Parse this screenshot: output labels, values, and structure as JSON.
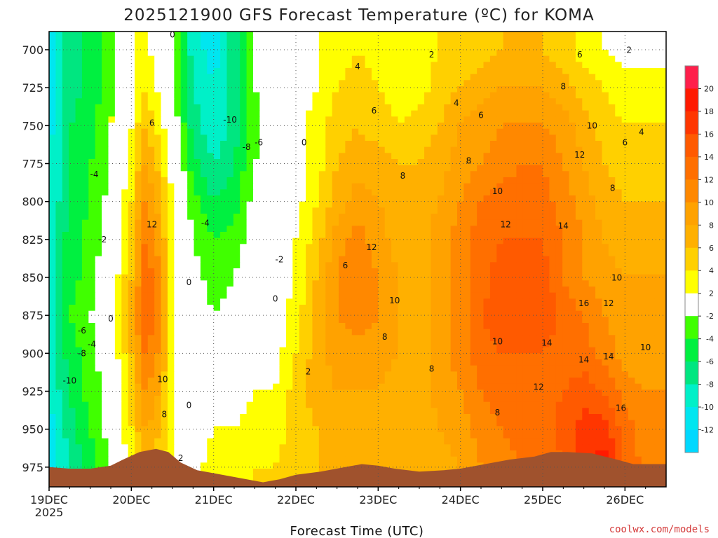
{
  "title": "2025121900 GFS Forecast Temperature (ºC) for KOMA",
  "credit": "coolwx.com/models",
  "chart_data": {
    "type": "heatmap",
    "title": "2025121900 GFS Forecast Temperature (ºC) for KOMA",
    "xlabel": "Forecast Time (UTC)",
    "ylabel": "",
    "x_ticks": [
      "19DEC",
      "20DEC",
      "21DEC",
      "22DEC",
      "23DEC",
      "24DEC",
      "25DEC",
      "26DEC"
    ],
    "x_year": "2025",
    "x_range_days": [
      0,
      7.5
    ],
    "y_ticks": [
      700,
      725,
      750,
      775,
      800,
      825,
      850,
      875,
      900,
      925,
      950,
      975
    ],
    "y_range": [
      988,
      688
    ],
    "grid": true,
    "legend": "right",
    "colorbar": {
      "labels": [
        "20",
        "18",
        "16",
        "14",
        "12",
        "10",
        "8",
        "6",
        "4",
        "2",
        "-2",
        "-4",
        "-6",
        "-8",
        "-10",
        "-12"
      ],
      "colors": [
        "#ff1f4b",
        "#ff1a00",
        "#ff3600",
        "#ff5a00",
        "#ff6f00",
        "#ff8800",
        "#ffa200",
        "#ffb000",
        "#ffd000",
        "#ffff00",
        "#ffffff",
        "#40ff00",
        "#00f040",
        "#00e680",
        "#00f0c8",
        "#00e6f0",
        "#00d8ff"
      ]
    },
    "temperature_grid": {
      "x_days": [
        0,
        0.25,
        0.5,
        0.75,
        1.0,
        1.15,
        1.3,
        1.5,
        1.75,
        2.0,
        2.25,
        2.5,
        2.75,
        3.0,
        3.25,
        3.5,
        3.75,
        4.0,
        4.25,
        4.5,
        4.75,
        5.0,
        5.25,
        5.5,
        5.75,
        6.0,
        6.25,
        6.5,
        6.75,
        7.0,
        7.25,
        7.5
      ],
      "levels_hpa": [
        700,
        725,
        750,
        775,
        800,
        825,
        850,
        875,
        900,
        925,
        950,
        975
      ],
      "rows": [
        [
          -12,
          -7,
          -5,
          -3,
          1,
          3,
          1,
          -2,
          -9,
          -11,
          -7,
          -2,
          0,
          0,
          2,
          3,
          4,
          3,
          2,
          3,
          4,
          4,
          5,
          6,
          6,
          6,
          5,
          3,
          2,
          1,
          1,
          1
        ],
        [
          -12,
          -7,
          -5,
          -3,
          1,
          4,
          2,
          -1,
          -8,
          -10,
          -7,
          -2,
          0,
          1,
          2,
          4,
          5,
          4,
          3,
          3,
          5,
          6,
          7,
          8,
          8,
          8,
          7,
          5,
          4,
          3,
          3,
          3
        ],
        [
          -11,
          -6,
          -5,
          -2,
          2,
          6,
          4,
          0,
          -7,
          -10,
          -7,
          -3,
          0,
          1,
          3,
          5,
          6,
          5,
          4,
          5,
          6,
          8,
          9,
          10,
          10,
          10,
          9,
          7,
          5,
          4,
          4,
          4
        ],
        [
          -10,
          -6,
          -4,
          -2,
          3,
          8,
          6,
          1,
          -5,
          -8,
          -6,
          -2,
          0,
          1,
          3,
          6,
          7,
          7,
          6,
          6,
          7,
          9,
          10,
          11,
          12,
          12,
          10,
          8,
          6,
          5,
          5,
          5
        ],
        [
          -10,
          -6,
          -4,
          -1,
          4,
          10,
          8,
          2,
          -3,
          -6,
          -5,
          -1,
          0,
          1,
          4,
          7,
          9,
          8,
          7,
          7,
          8,
          10,
          12,
          13,
          13,
          13,
          11,
          9,
          7,
          6,
          6,
          6
        ],
        [
          -9,
          -5,
          -3,
          -1,
          5,
          12,
          10,
          2,
          -2,
          -4,
          -3,
          -1,
          0,
          2,
          5,
          9,
          11,
          9,
          7,
          7,
          9,
          11,
          13,
          14,
          14,
          14,
          12,
          10,
          8,
          7,
          7,
          7
        ],
        [
          -9,
          -5,
          -3,
          0,
          6,
          13,
          12,
          2,
          -1,
          -3,
          -2,
          0,
          0,
          2,
          6,
          10,
          12,
          10,
          8,
          7,
          9,
          11,
          13,
          15,
          15,
          15,
          12,
          10,
          9,
          8,
          8,
          8
        ],
        [
          -9,
          -4,
          -2,
          0,
          7,
          14,
          12,
          2,
          0,
          -2,
          -1,
          0,
          1,
          3,
          7,
          10,
          11,
          10,
          8,
          7,
          9,
          11,
          14,
          15,
          16,
          16,
          13,
          12,
          10,
          9,
          9,
          9
        ],
        [
          -9,
          -5,
          -3,
          0,
          6,
          12,
          11,
          2,
          0,
          0,
          0,
          1,
          1,
          4,
          7,
          9,
          9,
          9,
          8,
          7,
          9,
          11,
          13,
          14,
          14,
          14,
          13,
          13,
          11,
          9,
          9,
          9
        ],
        [
          -10,
          -6,
          -3,
          -1,
          5,
          10,
          9,
          2,
          0,
          1,
          1,
          2,
          2,
          5,
          7,
          8,
          8,
          8,
          7,
          7,
          9,
          10,
          12,
          13,
          13,
          13,
          14,
          15,
          14,
          11,
          10,
          10
        ],
        [
          -11,
          -7,
          -4,
          -1,
          4,
          8,
          7,
          2,
          1,
          2,
          2,
          3,
          3,
          5,
          6,
          7,
          7,
          7,
          6,
          6,
          8,
          9,
          11,
          12,
          13,
          13,
          15,
          17,
          17,
          13,
          11,
          10
        ],
        [
          -11,
          -8,
          -5,
          -2,
          3,
          6,
          5,
          2,
          1,
          3,
          3,
          4,
          4,
          5,
          6,
          7,
          7,
          6,
          6,
          6,
          7,
          8,
          10,
          11,
          12,
          12,
          14,
          18,
          19,
          14,
          11,
          10
        ]
      ]
    },
    "contour_labels": [
      {
        "text": "0",
        "day": 1.5,
        "hpa": 692
      },
      {
        "text": "-10",
        "day": 2.2,
        "hpa": 748
      },
      {
        "text": "-8",
        "day": 2.4,
        "hpa": 766
      },
      {
        "text": "-6",
        "day": 2.55,
        "hpa": 763
      },
      {
        "text": "-4",
        "day": 1.9,
        "hpa": 816
      },
      {
        "text": "-2",
        "day": 2.8,
        "hpa": 840
      },
      {
        "text": "0",
        "day": 3.1,
        "hpa": 763
      },
      {
        "text": "0",
        "day": 2.75,
        "hpa": 866
      },
      {
        "text": "0",
        "day": 1.7,
        "hpa": 855
      },
      {
        "text": "0",
        "day": 0.75,
        "hpa": 879
      },
      {
        "text": "0",
        "day": 1.7,
        "hpa": 936
      },
      {
        "text": "-2",
        "day": 0.65,
        "hpa": 827
      },
      {
        "text": "-4",
        "day": 0.55,
        "hpa": 784
      },
      {
        "text": "-4",
        "day": 0.52,
        "hpa": 896
      },
      {
        "text": "-6",
        "day": 0.4,
        "hpa": 887
      },
      {
        "text": "-8",
        "day": 0.4,
        "hpa": 902
      },
      {
        "text": "-10",
        "day": 0.25,
        "hpa": 920
      },
      {
        "text": "6",
        "day": 1.25,
        "hpa": 750
      },
      {
        "text": "12",
        "day": 1.25,
        "hpa": 817
      },
      {
        "text": "10",
        "day": 1.38,
        "hpa": 919
      },
      {
        "text": "8",
        "day": 1.4,
        "hpa": 942
      },
      {
        "text": "2",
        "day": 1.6,
        "hpa": 971
      },
      {
        "text": "2",
        "day": 3.15,
        "hpa": 914
      },
      {
        "text": "2",
        "day": 4.65,
        "hpa": 705
      },
      {
        "text": "4",
        "day": 3.75,
        "hpa": 713
      },
      {
        "text": "6",
        "day": 3.95,
        "hpa": 742
      },
      {
        "text": "8",
        "day": 4.3,
        "hpa": 785
      },
      {
        "text": "12",
        "day": 3.92,
        "hpa": 832
      },
      {
        "text": "10",
        "day": 4.2,
        "hpa": 867
      },
      {
        "text": "6",
        "day": 3.6,
        "hpa": 844
      },
      {
        "text": "8",
        "day": 4.08,
        "hpa": 891
      },
      {
        "text": "8",
        "day": 4.65,
        "hpa": 912
      },
      {
        "text": "4",
        "day": 4.95,
        "hpa": 737
      },
      {
        "text": "6",
        "day": 5.25,
        "hpa": 745
      },
      {
        "text": "8",
        "day": 5.1,
        "hpa": 775
      },
      {
        "text": "10",
        "day": 5.45,
        "hpa": 795
      },
      {
        "text": "12",
        "day": 5.55,
        "hpa": 817
      },
      {
        "text": "10",
        "day": 5.45,
        "hpa": 894
      },
      {
        "text": "8",
        "day": 5.45,
        "hpa": 941
      },
      {
        "text": "6",
        "day": 6.45,
        "hpa": 705
      },
      {
        "text": "8",
        "day": 6.25,
        "hpa": 726
      },
      {
        "text": "10",
        "day": 6.6,
        "hpa": 752
      },
      {
        "text": "12",
        "day": 6.45,
        "hpa": 771
      },
      {
        "text": "14",
        "day": 6.25,
        "hpa": 818
      },
      {
        "text": "16",
        "day": 6.5,
        "hpa": 869
      },
      {
        "text": "14",
        "day": 6.05,
        "hpa": 895
      },
      {
        "text": "14",
        "day": 6.5,
        "hpa": 906
      },
      {
        "text": "12",
        "day": 5.95,
        "hpa": 924
      },
      {
        "text": "14",
        "day": 6.8,
        "hpa": 904
      },
      {
        "text": "12",
        "day": 6.8,
        "hpa": 869
      },
      {
        "text": "10",
        "day": 6.9,
        "hpa": 852
      },
      {
        "text": "8",
        "day": 6.85,
        "hpa": 793
      },
      {
        "text": "6",
        "day": 7.0,
        "hpa": 763
      },
      {
        "text": "4",
        "day": 7.2,
        "hpa": 756
      },
      {
        "text": "2",
        "day": 7.05,
        "hpa": 702
      },
      {
        "text": "10",
        "day": 7.25,
        "hpa": 898
      },
      {
        "text": "16",
        "day": 6.95,
        "hpa": 938
      }
    ],
    "terrain_color": "#a0522d",
    "terrain_surface_hpa": [
      [
        0,
        975
      ],
      [
        0.25,
        976
      ],
      [
        0.5,
        976
      ],
      [
        0.75,
        974
      ],
      [
        0.9,
        970
      ],
      [
        1.1,
        965
      ],
      [
        1.3,
        963
      ],
      [
        1.45,
        965
      ],
      [
        1.6,
        972
      ],
      [
        1.8,
        977
      ],
      [
        2.0,
        979
      ],
      [
        2.3,
        982
      ],
      [
        2.6,
        985
      ],
      [
        2.8,
        983
      ],
      [
        3.0,
        980
      ],
      [
        3.3,
        978
      ],
      [
        3.6,
        975
      ],
      [
        3.8,
        973
      ],
      [
        4.0,
        974
      ],
      [
        4.2,
        976
      ],
      [
        4.5,
        978
      ],
      [
        4.8,
        977
      ],
      [
        5.0,
        976
      ],
      [
        5.3,
        973
      ],
      [
        5.6,
        970
      ],
      [
        5.9,
        968
      ],
      [
        6.1,
        965
      ],
      [
        6.3,
        965
      ],
      [
        6.6,
        966
      ],
      [
        6.9,
        970
      ],
      [
        7.1,
        973
      ],
      [
        7.5,
        973
      ]
    ]
  }
}
